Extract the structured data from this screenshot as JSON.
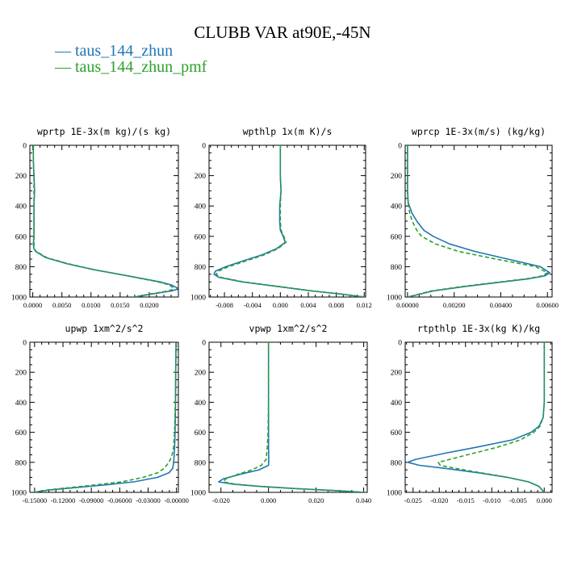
{
  "title": "CLUBB VAR at90E,-45N",
  "colors": {
    "series0": "#1f77b4",
    "series1": "#2ca02c"
  },
  "legend": [
    {
      "glyph": "—",
      "label": "taus_144_zhun",
      "color": "#1f77b4"
    },
    {
      "glyph": "—",
      "label": "taus_144_zhun_pmf",
      "color": "#2ca02c"
    }
  ],
  "chart_data": [
    {
      "type": "line",
      "title": "wprtp  1E-3x(m kg)/(s kg)",
      "xlim": [
        -0.0005,
        0.025
      ],
      "ylim": [
        1000,
        0
      ],
      "xticks": [
        "0.0000",
        "0.0050",
        "0.0100",
        "0.0150",
        "0.0200"
      ],
      "xtick_values": [
        0,
        0.005,
        0.01,
        0.015,
        0.02
      ],
      "yticks": [
        "0",
        "200",
        "400",
        "600",
        "800",
        "1000"
      ],
      "grid": false,
      "y": [
        0,
        100,
        200,
        300,
        400,
        500,
        600,
        650,
        680,
        700,
        740,
        780,
        820,
        860,
        900,
        920,
        940,
        950,
        960,
        980,
        1000
      ],
      "series": [
        {
          "values": [
            0.0001,
            0.0001,
            0.0002,
            0.0003,
            0.0002,
            0.0002,
            0.0002,
            0.0001,
            0.0002,
            0.0005,
            0.0022,
            0.0058,
            0.0105,
            0.0163,
            0.0218,
            0.0238,
            0.0248,
            0.0247,
            0.0238,
            0.0205,
            0.0175
          ]
        },
        {
          "values": [
            0.0001,
            0.0001,
            0.0002,
            0.0002,
            0.0002,
            0.0002,
            0.0002,
            0.0002,
            0.0002,
            0.0006,
            0.0024,
            0.006,
            0.0106,
            0.0162,
            0.0215,
            0.0234,
            0.0242,
            0.024,
            0.0232,
            0.0202,
            0.0172
          ]
        }
      ]
    },
    {
      "type": "line",
      "title": "wpthlp  1x(m K)/s",
      "xlim": [
        -0.0102,
        0.0122
      ],
      "ylim": [
        1000,
        0
      ],
      "xticks": [
        "-0.008",
        "-0.004",
        "0.000",
        "0.004",
        "0.008",
        "0.012"
      ],
      "xtick_values": [
        -0.008,
        -0.004,
        0,
        0.004,
        0.008,
        0.012
      ],
      "yticks": [
        "0",
        "200",
        "400",
        "600",
        "800",
        "1000"
      ],
      "grid": false,
      "y": [
        0,
        100,
        200,
        300,
        400,
        500,
        560,
        600,
        640,
        680,
        720,
        760,
        800,
        830,
        850,
        870,
        900,
        930,
        960,
        980,
        1000
      ],
      "series": [
        {
          "values": [
            0.0,
            0.0,
            0.0,
            0.0001,
            -0.0001,
            -0.0001,
            0.0,
            0.0004,
            0.0007,
            -0.0005,
            -0.0025,
            -0.0052,
            -0.0078,
            -0.0093,
            -0.0095,
            -0.0088,
            -0.0055,
            -0.0005,
            0.0045,
            0.0085,
            0.012
          ]
        },
        {
          "values": [
            0.0,
            0.0,
            0.0,
            0.0001,
            0.0,
            0.0,
            0.0001,
            0.0005,
            0.0008,
            -0.0003,
            -0.0022,
            -0.0048,
            -0.0074,
            -0.0089,
            -0.0092,
            -0.0085,
            -0.0053,
            -0.0003,
            0.0047,
            0.0087,
            0.0122
          ]
        }
      ]
    },
    {
      "type": "line",
      "title": "wprcp  1E-3x(m/s) (kg/kg)",
      "xlim": [
        -0.0001,
        0.0062
      ],
      "ylim": [
        1000,
        0
      ],
      "xticks": [
        "0.00000",
        "0.00200",
        "0.00400",
        "0.00600"
      ],
      "xtick_values": [
        0,
        0.002,
        0.004,
        0.006
      ],
      "yticks": [
        "0",
        "200",
        "400",
        "600",
        "800",
        "1000"
      ],
      "grid": false,
      "y": [
        0,
        100,
        200,
        300,
        380,
        450,
        500,
        560,
        600,
        650,
        700,
        750,
        800,
        840,
        860,
        880,
        900,
        930,
        960,
        1000
      ],
      "series": [
        {
          "values": [
            0.0,
            0.0,
            0.0,
            0.0,
            3e-05,
            0.0002,
            0.0004,
            0.0007,
            0.0011,
            0.0018,
            0.0029,
            0.0043,
            0.0057,
            0.0061,
            0.0059,
            0.0052,
            0.0041,
            0.0025,
            0.0011,
            0.0
          ]
        },
        {
          "values": [
            0.0,
            0.0,
            0.0,
            0.0,
            2e-05,
            0.0001,
            0.0002,
            0.0004,
            0.0006,
            0.0012,
            0.0022,
            0.0038,
            0.0055,
            0.006,
            0.0058,
            0.0051,
            0.004,
            0.0024,
            0.001,
            0.0
          ]
        }
      ]
    },
    {
      "type": "line",
      "title": "upwp  1xm^2/s^2",
      "xlim": [
        -0.155,
        0.002
      ],
      "ylim": [
        1000,
        0
      ],
      "xticks": [
        "-0.15000",
        "-0.12000",
        "-0.09000",
        "-0.06000",
        "-0.03000",
        "-0.00000"
      ],
      "xtick_values": [
        -0.15,
        -0.12,
        -0.09,
        -0.06,
        -0.03,
        0
      ],
      "yticks": [
        "0",
        "200",
        "400",
        "600",
        "800",
        "1000"
      ],
      "grid": false,
      "y": [
        0,
        200,
        400,
        600,
        700,
        760,
        800,
        840,
        870,
        900,
        930,
        950,
        970,
        985,
        1000
      ],
      "series": [
        {
          "values": [
            -0.0005,
            -0.0008,
            -0.001,
            -0.0015,
            -0.002,
            -0.0025,
            -0.003,
            -0.004,
            -0.008,
            -0.02,
            -0.045,
            -0.075,
            -0.11,
            -0.135,
            -0.152
          ]
        },
        {
          "values": [
            -0.0005,
            -0.0008,
            -0.0012,
            -0.002,
            -0.003,
            -0.005,
            -0.008,
            -0.013,
            -0.02,
            -0.035,
            -0.058,
            -0.085,
            -0.115,
            -0.138,
            -0.15
          ]
        }
      ]
    },
    {
      "type": "line",
      "title": "vpwp  1xm^2/s^2",
      "xlim": [
        -0.025,
        0.0415
      ],
      "ylim": [
        1000,
        0
      ],
      "xticks": [
        "-0.020",
        "0.000",
        "0.020",
        "0.040"
      ],
      "xtick_values": [
        -0.02,
        0,
        0.02,
        0.04
      ],
      "yticks": [
        "0",
        "200",
        "400",
        "600",
        "800",
        "1000"
      ],
      "grid": false,
      "y": [
        0,
        200,
        400,
        600,
        700,
        780,
        820,
        850,
        880,
        910,
        930,
        945,
        960,
        975,
        990,
        1000
      ],
      "series": [
        {
          "values": [
            0.0,
            0.0,
            0.0,
            0.0,
            0.0,
            0.0001,
            0.0,
            -0.004,
            -0.012,
            -0.019,
            -0.021,
            -0.015,
            -0.004,
            0.012,
            0.03,
            0.041
          ]
        },
        {
          "values": [
            0.0,
            0.0,
            0.0,
            -0.0002,
            -0.0005,
            -0.001,
            -0.003,
            -0.007,
            -0.013,
            -0.018,
            -0.019,
            -0.014,
            -0.003,
            0.012,
            0.029,
            0.04
          ]
        }
      ]
    },
    {
      "type": "line",
      "title": "rtpthlp  1E-3x(kg K)/kg",
      "xlim": [
        -0.0265,
        0.0015
      ],
      "ylim": [
        1000,
        0
      ],
      "xticks": [
        "-0.025",
        "-0.020",
        "-0.015",
        "-0.010",
        "-0.005",
        "0.000"
      ],
      "xtick_values": [
        -0.025,
        -0.02,
        -0.015,
        -0.01,
        -0.005,
        0
      ],
      "yticks": [
        "0",
        "200",
        "400",
        "600",
        "800",
        "1000"
      ],
      "grid": false,
      "y": [
        0,
        100,
        200,
        300,
        400,
        500,
        560,
        600,
        650,
        700,
        740,
        780,
        800,
        820,
        840,
        870,
        900,
        930,
        960,
        1000
      ],
      "series": [
        {
          "values": [
            0.0,
            0.0,
            0.0,
            0.0,
            0.0,
            -0.0002,
            -0.001,
            -0.0025,
            -0.006,
            -0.013,
            -0.019,
            -0.0245,
            -0.026,
            -0.0238,
            -0.019,
            -0.0125,
            -0.007,
            -0.003,
            -0.001,
            0.0
          ]
        },
        {
          "values": [
            0.0,
            0.0,
            0.0,
            0.0,
            0.0,
            -0.0002,
            -0.0008,
            -0.002,
            -0.0045,
            -0.009,
            -0.0135,
            -0.018,
            -0.0202,
            -0.0198,
            -0.017,
            -0.012,
            -0.007,
            -0.003,
            -0.001,
            0.0
          ]
        }
      ]
    }
  ]
}
